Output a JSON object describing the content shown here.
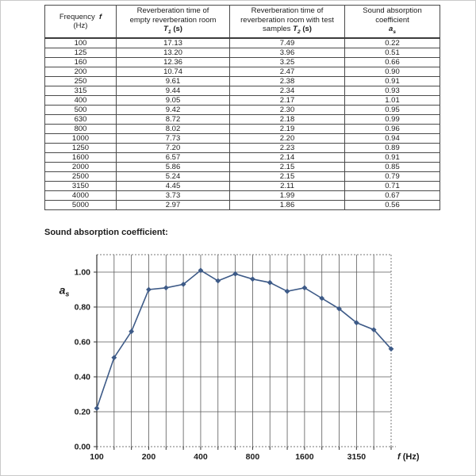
{
  "document": {
    "section_title": "Sound absorption coefficient:"
  },
  "table": {
    "col1": {
      "line1": "Frequency",
      "symbol": "f",
      "line2": "(Hz)"
    },
    "col2": {
      "line1": "Reverberation time of",
      "line2": "empty reverberation room",
      "symbol": "T",
      "sub": "1",
      "unit": "(s)"
    },
    "col3": {
      "line1": "Reverberation time of",
      "line2": "reverberation room with test",
      "line3": "samples",
      "symbol": "T",
      "sub": "2",
      "unit": "(s)"
    },
    "col4": {
      "line1": "Sound absorption",
      "line2": "coefficient",
      "symbol": "a",
      "sub": "s"
    },
    "rows": [
      [
        "100",
        "17.13",
        "7.49",
        "0.22"
      ],
      [
        "125",
        "13.20",
        "3.96",
        "0.51"
      ],
      [
        "160",
        "12.36",
        "3.25",
        "0.66"
      ],
      [
        "200",
        "10.74",
        "2.47",
        "0.90"
      ],
      [
        "250",
        "9.61",
        "2.38",
        "0.91"
      ],
      [
        "315",
        "9.44",
        "2.34",
        "0.93"
      ],
      [
        "400",
        "9.05",
        "2.17",
        "1.01"
      ],
      [
        "500",
        "9.42",
        "2.30",
        "0.95"
      ],
      [
        "630",
        "8.72",
        "2.18",
        "0.99"
      ],
      [
        "800",
        "8.02",
        "2.19",
        "0.96"
      ],
      [
        "1000",
        "7.73",
        "2.20",
        "0.94"
      ],
      [
        "1250",
        "7.20",
        "2.23",
        "0.89"
      ],
      [
        "1600",
        "6.57",
        "2.14",
        "0.91"
      ],
      [
        "2000",
        "5.86",
        "2.15",
        "0.85"
      ],
      [
        "2500",
        "5.24",
        "2.15",
        "0.79"
      ],
      [
        "3150",
        "4.45",
        "2.11",
        "0.71"
      ],
      [
        "4000",
        "3.73",
        "1.99",
        "0.67"
      ],
      [
        "5000",
        "2.97",
        "1.86",
        "0.56"
      ]
    ]
  },
  "chart_data": {
    "type": "line",
    "title": "Sound absorption coefficient",
    "categories": [
      "100",
      "125",
      "160",
      "200",
      "250",
      "315",
      "400",
      "500",
      "630",
      "800",
      "1000",
      "1250",
      "1600",
      "2000",
      "2500",
      "3150",
      "4000",
      "5000"
    ],
    "values": [
      0.22,
      0.51,
      0.66,
      0.9,
      0.91,
      0.93,
      1.01,
      0.95,
      0.99,
      0.96,
      0.94,
      0.89,
      0.91,
      0.85,
      0.79,
      0.71,
      0.67,
      0.56
    ],
    "xlabel_symbol": "f",
    "xlabel_unit": "(Hz)",
    "ylabel_symbol": "a",
    "ylabel_sub": "s",
    "ylim": [
      0,
      1.1
    ],
    "ytick_values": [
      0,
      0.2,
      0.4,
      0.6,
      0.8,
      1.0
    ],
    "ytick_labels": [
      "0.00",
      "0.20",
      "0.40",
      "0.60",
      "0.80",
      "1.00"
    ],
    "xtick_label_indices": [
      0,
      3,
      6,
      9,
      12,
      15
    ],
    "xtick_labels_shown": [
      "100",
      "200",
      "400",
      "800",
      "1600",
      "3150"
    ],
    "grid": "both",
    "legend": "none",
    "line_color": "#3d5a87",
    "grid_color": "#5a5a5a",
    "axis_color": "#333333",
    "dashed_border_color": "#777777",
    "marker": "diamond"
  }
}
